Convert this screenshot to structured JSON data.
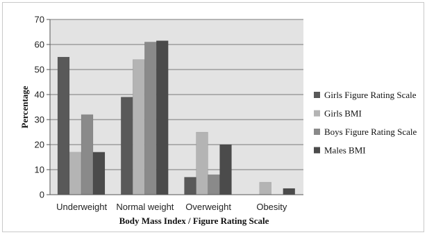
{
  "chart_data": {
    "type": "bar",
    "title": "",
    "xlabel": "Body Mass Index / Figure Rating Scale",
    "ylabel": "Percentage",
    "ylim": [
      0,
      70
    ],
    "yticks": [
      0,
      10,
      20,
      30,
      40,
      50,
      60,
      70
    ],
    "grid": true,
    "legend_position": "right",
    "categories": [
      "Underweight",
      "Normal weight",
      "Overweight",
      "Obesity"
    ],
    "series": [
      {
        "name": "Girls Figure Rating Scale",
        "color": "#595959",
        "values": [
          55,
          39,
          7,
          0
        ]
      },
      {
        "name": "Girls BMI",
        "color": "#b4b4b4",
        "values": [
          17,
          54,
          25,
          5
        ]
      },
      {
        "name": "Boys Figure Rating Scale",
        "color": "#8a8a8a",
        "values": [
          32,
          61,
          8,
          0
        ]
      },
      {
        "name": "Males BMI",
        "color": "#4b4b4b",
        "values": [
          17,
          61.5,
          20,
          2.5
        ]
      }
    ],
    "plot_background": "#e3e3e3"
  }
}
